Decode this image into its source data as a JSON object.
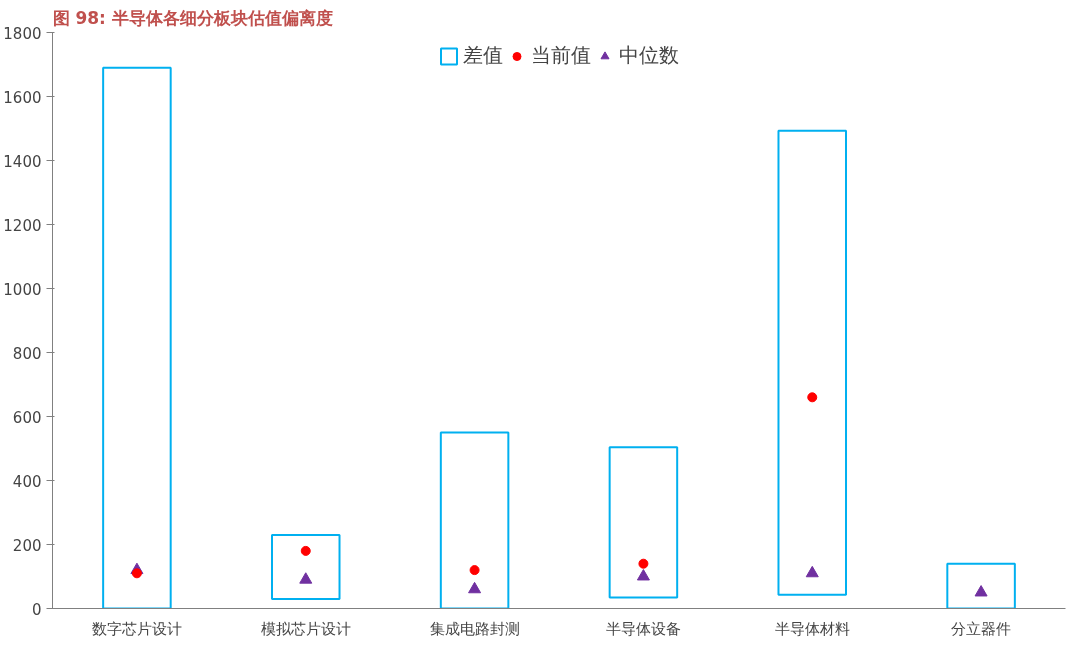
{
  "chart_data": {
    "type": "bar",
    "title": "图 98: 半导体各细分板块估值偏离度",
    "categories": [
      "数字芯片设计",
      "模拟芯片设计",
      "集成电路封测",
      "半导体设备",
      "半导体材料",
      "分立器件"
    ],
    "series": [
      {
        "name": "差值",
        "type": "bar",
        "color": "#00b0f0",
        "base": [
          0,
          30,
          0,
          34,
          43,
          0
        ],
        "values": [
          1690,
          200,
          550,
          470,
          1450,
          140
        ]
      },
      {
        "name": "当前值",
        "type": "scatter",
        "marker": "circle",
        "color": "#ff0000",
        "values": [
          110,
          180,
          120,
          140,
          660,
          null
        ]
      },
      {
        "name": "中位数",
        "type": "scatter",
        "marker": "triangle",
        "color": "#7030a0",
        "values": [
          120,
          90,
          60,
          100,
          110,
          50
        ]
      }
    ],
    "ylim": [
      0,
      1800
    ],
    "yticks": [
      0,
      200,
      400,
      600,
      800,
      1000,
      1200,
      1400,
      1600,
      1800
    ],
    "grid": false,
    "legend": "top"
  }
}
